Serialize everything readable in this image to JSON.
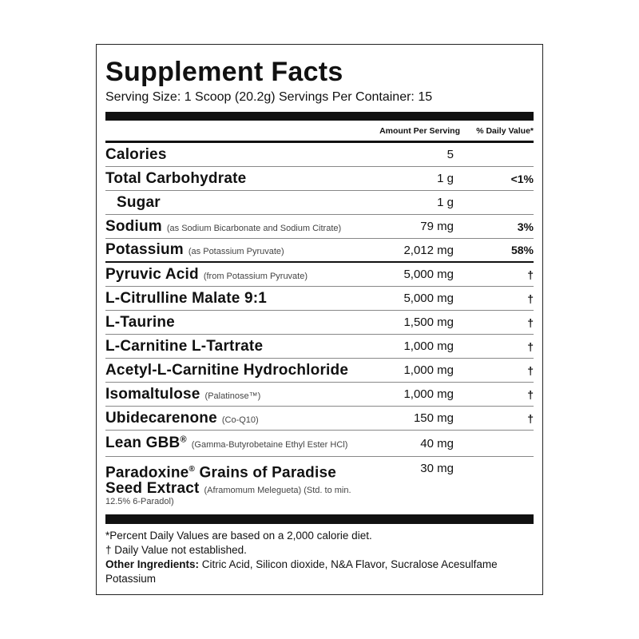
{
  "title": "Supplement Facts",
  "serving": "Serving Size: 1 Scoop (20.2g)  Servings Per Container: 15",
  "header": {
    "amount": "Amount Per Serving",
    "dv": "% Daily Value*"
  },
  "rows": [
    {
      "name": "Calories",
      "note": "",
      "amount": "5",
      "dv": ""
    },
    {
      "name": "Total Carbohydrate",
      "note": "",
      "amount": "1 g",
      "dv": "<1%"
    },
    {
      "name": "Sugar",
      "note": "",
      "amount": "1 g",
      "dv": ""
    },
    {
      "name": "Sodium",
      "note": "(as Sodium Bicarbonate and Sodium Citrate)",
      "amount": "79 mg",
      "dv": "3%"
    },
    {
      "name": "Potassium",
      "note": "(as Potassium Pyruvate)",
      "amount": "2,012 mg",
      "dv": "58%"
    },
    {
      "name": "Pyruvic Acid",
      "note": "(from Potassium Pyruvate)",
      "amount": "5,000 mg",
      "dv": "†"
    },
    {
      "name": "L-Citrulline Malate 9:1",
      "note": "",
      "amount": "5,000 mg",
      "dv": "†"
    },
    {
      "name": "L-Taurine",
      "note": "",
      "amount": "1,500 mg",
      "dv": "†"
    },
    {
      "name": "L-Carnitine L-Tartrate",
      "note": "",
      "amount": "1,000 mg",
      "dv": "†"
    },
    {
      "name": "Acetyl-L-Carnitine Hydrochloride",
      "note": "",
      "amount": "1,000 mg",
      "dv": "†"
    },
    {
      "name": "Isomaltulose",
      "note": "(Palatinose™)",
      "amount": "1,000 mg",
      "dv": "†"
    },
    {
      "name": "Ubidecarenone",
      "note": "(Co-Q10)",
      "amount": "150 mg",
      "dv": "†"
    },
    {
      "name": "Lean GBB",
      "reg": "®",
      "note": "(Gamma-Butyrobetaine Ethyl Ester HCl)",
      "amount": "40 mg",
      "dv": ""
    }
  ],
  "paradoxine": {
    "name1": "Paradoxine",
    "reg": "®",
    "name2": " Grains of Paradise",
    "name3": "Seed Extract",
    "note": "(Aframomum Melegueta) (Std. to min.",
    "note2": "12.5% 6-Paradol)",
    "amount": "30 mg"
  },
  "footer": {
    "dv_note": "*Percent Daily Values are based on a 2,000 calorie diet.",
    "dagger_note": "† Daily Value not established.",
    "other_label": "Other Ingredients:",
    "other_text": " Citric Acid, Silicon dioxide, N&A Flavor, Sucralose Acesulfame Potassium"
  }
}
